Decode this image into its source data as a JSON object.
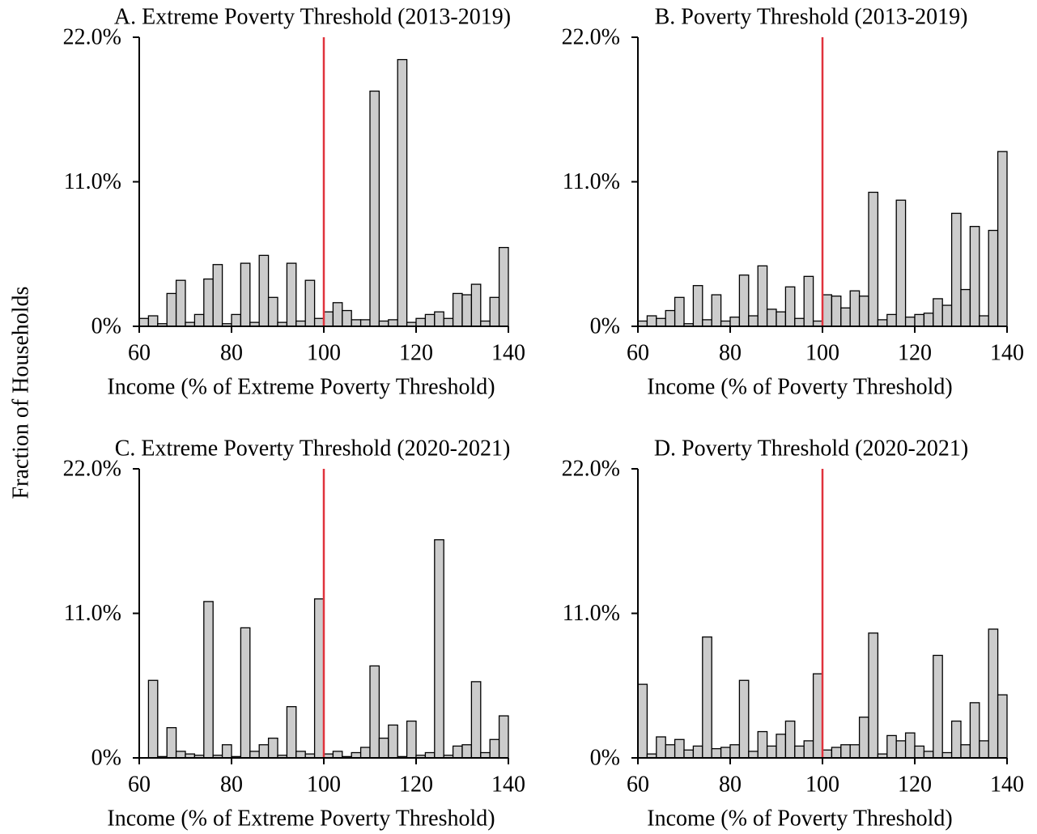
{
  "ylabel": "Fraction of Households",
  "chart_data": [
    {
      "type": "histogram",
      "title": "A. Extreme Poverty Threshold (2013-2019)",
      "xlabel": "Income (% of Extreme Poverty Threshold)",
      "bins": [
        60,
        62,
        64,
        66,
        68,
        70,
        72,
        74,
        76,
        78,
        80,
        82,
        84,
        86,
        88,
        90,
        92,
        94,
        96,
        98,
        100,
        102,
        104,
        106,
        108,
        110,
        112,
        114,
        116,
        118,
        120,
        122,
        124,
        126,
        128,
        130,
        132,
        134,
        136,
        138,
        140
      ],
      "values": [
        0.6,
        0.8,
        0.2,
        2.5,
        3.5,
        0.3,
        0.9,
        3.6,
        4.7,
        0.2,
        0.9,
        4.8,
        0.3,
        5.4,
        2.2,
        0.3,
        4.8,
        0.4,
        3.5,
        0.6,
        1.1,
        1.8,
        1.2,
        0.5,
        0.5,
        17.9,
        0.4,
        0.5,
        20.3,
        0.3,
        0.6,
        0.9,
        1.1,
        0.6,
        2.5,
        2.4,
        3.2,
        0.4,
        2.2,
        6.0
      ],
      "color": "#cccccc",
      "vline": 100,
      "vline_color": "#e0323c",
      "xlim": [
        60,
        140
      ],
      "xticks": [
        60,
        80,
        100,
        120,
        140
      ],
      "ylim": [
        0,
        22
      ],
      "yticks": [
        {
          "value": 0,
          "label": "0%"
        },
        {
          "value": 11,
          "label": "11.0%"
        },
        {
          "value": 22,
          "label": "22.0%"
        }
      ]
    },
    {
      "type": "histogram",
      "title": "B. Poverty Threshold (2013-2019)",
      "xlabel": "Income (% of Poverty Threshold)",
      "bins": [
        60,
        62,
        64,
        66,
        68,
        70,
        72,
        74,
        76,
        78,
        80,
        82,
        84,
        86,
        88,
        90,
        92,
        94,
        96,
        98,
        100,
        102,
        104,
        106,
        108,
        110,
        112,
        114,
        116,
        118,
        120,
        122,
        124,
        126,
        128,
        130,
        132,
        134,
        136,
        138,
        140
      ],
      "values": [
        0.4,
        0.8,
        0.6,
        1.2,
        2.2,
        0.2,
        3.1,
        0.5,
        2.4,
        0.4,
        0.7,
        3.9,
        0.8,
        4.6,
        1.3,
        1.1,
        3.0,
        0.6,
        3.8,
        0.4,
        2.4,
        2.3,
        1.4,
        2.7,
        2.3,
        10.2,
        0.5,
        0.9,
        9.6,
        0.7,
        0.9,
        1.0,
        2.1,
        1.6,
        8.6,
        2.8,
        7.6,
        0.8,
        7.3,
        13.3
      ],
      "color": "#cccccc",
      "vline": 100,
      "vline_color": "#e0323c",
      "xlim": [
        60,
        140
      ],
      "xticks": [
        60,
        80,
        100,
        120,
        140
      ],
      "ylim": [
        0,
        22
      ],
      "yticks": [
        {
          "value": 0,
          "label": "0%"
        },
        {
          "value": 11,
          "label": "11.0%"
        },
        {
          "value": 22,
          "label": "22.0%"
        }
      ]
    },
    {
      "type": "histogram",
      "title": "C. Extreme Poverty Threshold (2020-2021)",
      "xlabel": "Income (% of Extreme Poverty Threshold)",
      "bins": [
        60,
        62,
        64,
        66,
        68,
        70,
        72,
        74,
        76,
        78,
        80,
        82,
        84,
        86,
        88,
        90,
        92,
        94,
        96,
        98,
        100,
        102,
        104,
        106,
        108,
        110,
        112,
        114,
        116,
        118,
        120,
        122,
        124,
        126,
        128,
        130,
        132,
        134,
        136,
        138,
        140
      ],
      "values": [
        0,
        5.9,
        0.1,
        2.3,
        0.5,
        0.3,
        0.2,
        11.9,
        0.2,
        1.0,
        0.1,
        9.9,
        0.5,
        1.0,
        1.5,
        0.2,
        3.9,
        0.5,
        0.3,
        12.1,
        0.3,
        0.5,
        0.1,
        0.4,
        0.8,
        7.0,
        1.5,
        2.5,
        0.1,
        2.8,
        0.2,
        0.4,
        16.6,
        0.2,
        0.9,
        1.0,
        5.8,
        0.4,
        1.4,
        3.2
      ],
      "color": "#cccccc",
      "vline": 100,
      "vline_color": "#e0323c",
      "xlim": [
        60,
        140
      ],
      "xticks": [
        60,
        80,
        100,
        120,
        140
      ],
      "ylim": [
        0,
        22
      ],
      "yticks": [
        {
          "value": 0,
          "label": "0%"
        },
        {
          "value": 11,
          "label": "11.0%"
        },
        {
          "value": 22,
          "label": "22.0%"
        }
      ]
    },
    {
      "type": "histogram",
      "title": "D. Poverty Threshold (2020-2021)",
      "xlabel": "Income (% of Poverty Threshold)",
      "bins": [
        60,
        62,
        64,
        66,
        68,
        70,
        72,
        74,
        76,
        78,
        80,
        82,
        84,
        86,
        88,
        90,
        92,
        94,
        96,
        98,
        100,
        102,
        104,
        106,
        108,
        110,
        112,
        114,
        116,
        118,
        120,
        122,
        124,
        126,
        128,
        130,
        132,
        134,
        136,
        138,
        140
      ],
      "values": [
        5.6,
        0.3,
        1.6,
        1.0,
        1.4,
        0.6,
        0.9,
        9.2,
        0.7,
        0.8,
        1.0,
        5.9,
        0.5,
        2.0,
        0.9,
        1.8,
        2.8,
        0.9,
        1.3,
        6.4,
        0.6,
        0.8,
        1.0,
        1.0,
        3.1,
        9.5,
        0.3,
        1.7,
        1.3,
        1.9,
        0.9,
        0.5,
        7.8,
        0.4,
        2.8,
        1.0,
        4.2,
        1.3,
        9.8,
        4.8
      ],
      "color": "#cccccc",
      "vline": 100,
      "vline_color": "#e0323c",
      "xlim": [
        60,
        140
      ],
      "xticks": [
        60,
        80,
        100,
        120,
        140
      ],
      "ylim": [
        0,
        22
      ],
      "yticks": [
        {
          "value": 0,
          "label": "0%"
        },
        {
          "value": 11,
          "label": "11.0%"
        },
        {
          "value": 22,
          "label": "22.0%"
        }
      ]
    }
  ]
}
